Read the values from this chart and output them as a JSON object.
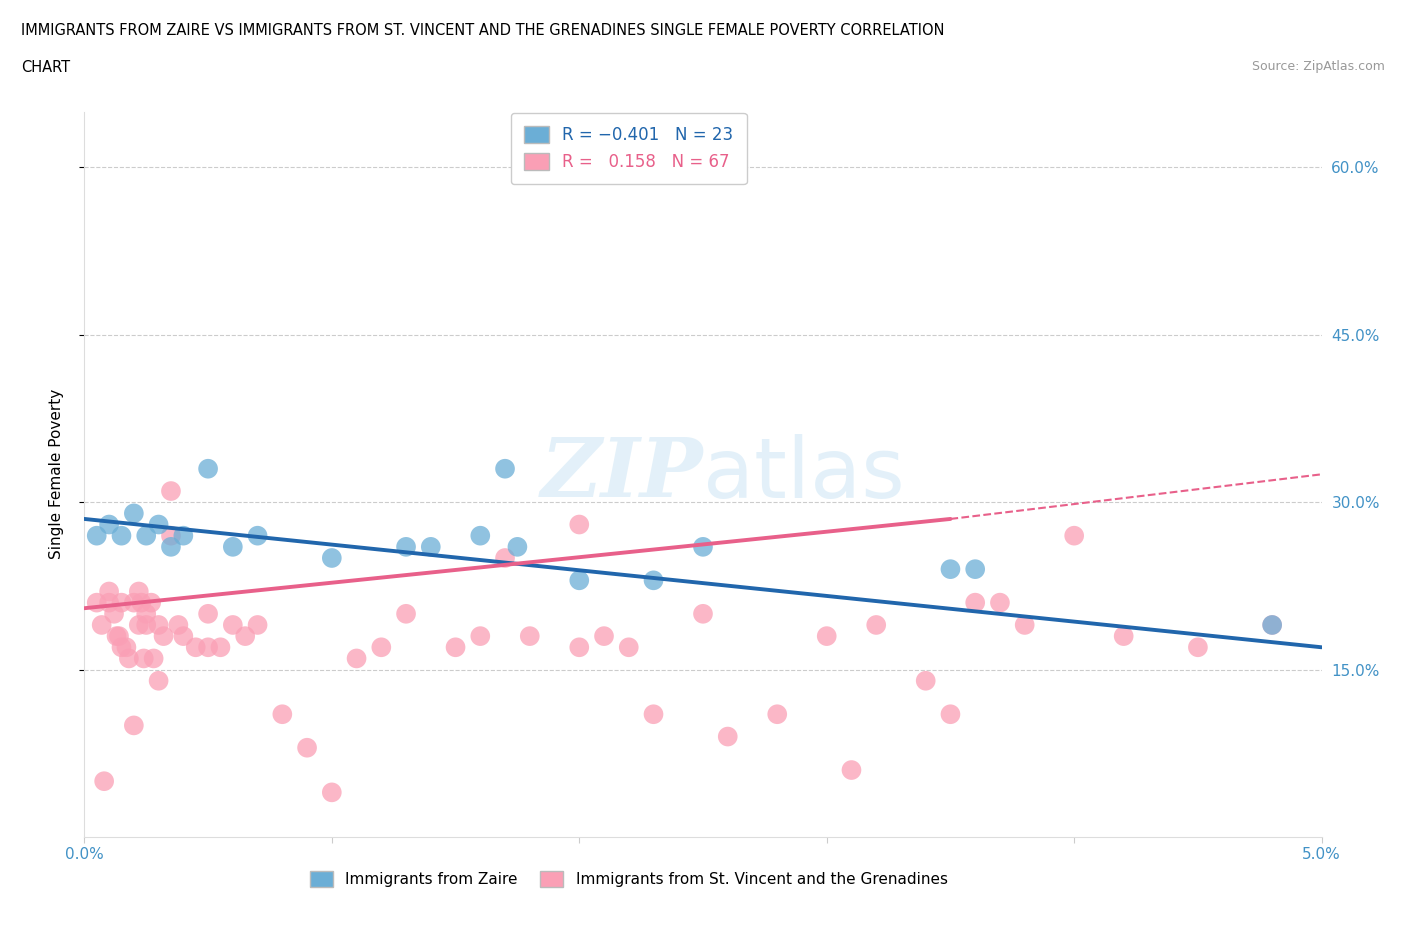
{
  "title_line1": "IMMIGRANTS FROM ZAIRE VS IMMIGRANTS FROM ST. VINCENT AND THE GRENADINES SINGLE FEMALE POVERTY CORRELATION",
  "title_line2": "CHART",
  "source_text": "Source: ZipAtlas.com",
  "ylabel": "Single Female Poverty",
  "xmin": 0.0,
  "xmax": 5.0,
  "ymin": 0.0,
  "ymax": 65.0,
  "yticks": [
    15.0,
    30.0,
    45.0,
    60.0
  ],
  "xticks": [
    0.0,
    1.0,
    2.0,
    3.0,
    4.0,
    5.0
  ],
  "legend_label_blue": "Immigrants from Zaire",
  "legend_label_pink": "Immigrants from St. Vincent and the Grenadines",
  "color_blue": "#6baed6",
  "color_pink": "#fa9fb5",
  "color_blue_line": "#2166ac",
  "color_pink_line": "#e8608a",
  "color_axis_label": "#4292c6",
  "watermark_color": "#cce5f5",
  "zaire_x": [
    0.05,
    0.1,
    0.15,
    0.2,
    0.25,
    0.3,
    0.35,
    0.4,
    0.5,
    0.6,
    0.7,
    1.0,
    1.3,
    1.4,
    1.6,
    1.7,
    1.75,
    2.0,
    2.3,
    2.5,
    3.5,
    3.6,
    4.8
  ],
  "zaire_y": [
    27,
    28,
    27,
    29,
    27,
    28,
    26,
    27,
    33,
    26,
    27,
    25,
    26,
    26,
    27,
    33,
    26,
    23,
    23,
    26,
    24,
    24,
    19
  ],
  "svg_x": [
    0.05,
    0.07,
    0.08,
    0.1,
    0.1,
    0.12,
    0.13,
    0.14,
    0.15,
    0.15,
    0.17,
    0.18,
    0.2,
    0.2,
    0.22,
    0.22,
    0.23,
    0.24,
    0.25,
    0.25,
    0.27,
    0.28,
    0.3,
    0.3,
    0.32,
    0.35,
    0.35,
    0.38,
    0.4,
    0.45,
    0.5,
    0.5,
    0.55,
    0.6,
    0.65,
    0.7,
    0.8,
    0.9,
    1.0,
    1.1,
    1.2,
    1.3,
    1.5,
    1.6,
    1.7,
    1.8,
    2.0,
    2.0,
    2.1,
    2.2,
    2.3,
    2.5,
    2.6,
    2.8,
    3.0,
    3.1,
    3.2,
    3.4,
    3.5,
    3.6,
    3.7,
    3.8,
    4.0,
    4.2,
    4.5,
    4.8
  ],
  "svg_y": [
    21,
    19,
    5,
    21,
    22,
    20,
    18,
    18,
    17,
    21,
    17,
    16,
    10,
    21,
    19,
    22,
    21,
    16,
    19,
    20,
    21,
    16,
    14,
    19,
    18,
    27,
    31,
    19,
    18,
    17,
    20,
    17,
    17,
    19,
    18,
    19,
    11,
    8,
    4,
    16,
    17,
    20,
    17,
    18,
    25,
    18,
    17,
    28,
    18,
    17,
    11,
    20,
    9,
    11,
    18,
    6,
    19,
    14,
    11,
    21,
    21,
    19,
    27,
    18,
    17,
    19
  ],
  "zaire_line_x0": 0.0,
  "zaire_line_x1": 5.0,
  "zaire_line_y0": 28.5,
  "zaire_line_y1": 17.0,
  "svg_line_solid_x0": 0.0,
  "svg_line_solid_x1": 3.5,
  "svg_line_solid_y0": 20.5,
  "svg_line_solid_y1": 28.5,
  "svg_line_dash_x0": 3.5,
  "svg_line_dash_x1": 5.0,
  "svg_line_dash_y0": 28.5,
  "svg_line_dash_y1": 32.5
}
